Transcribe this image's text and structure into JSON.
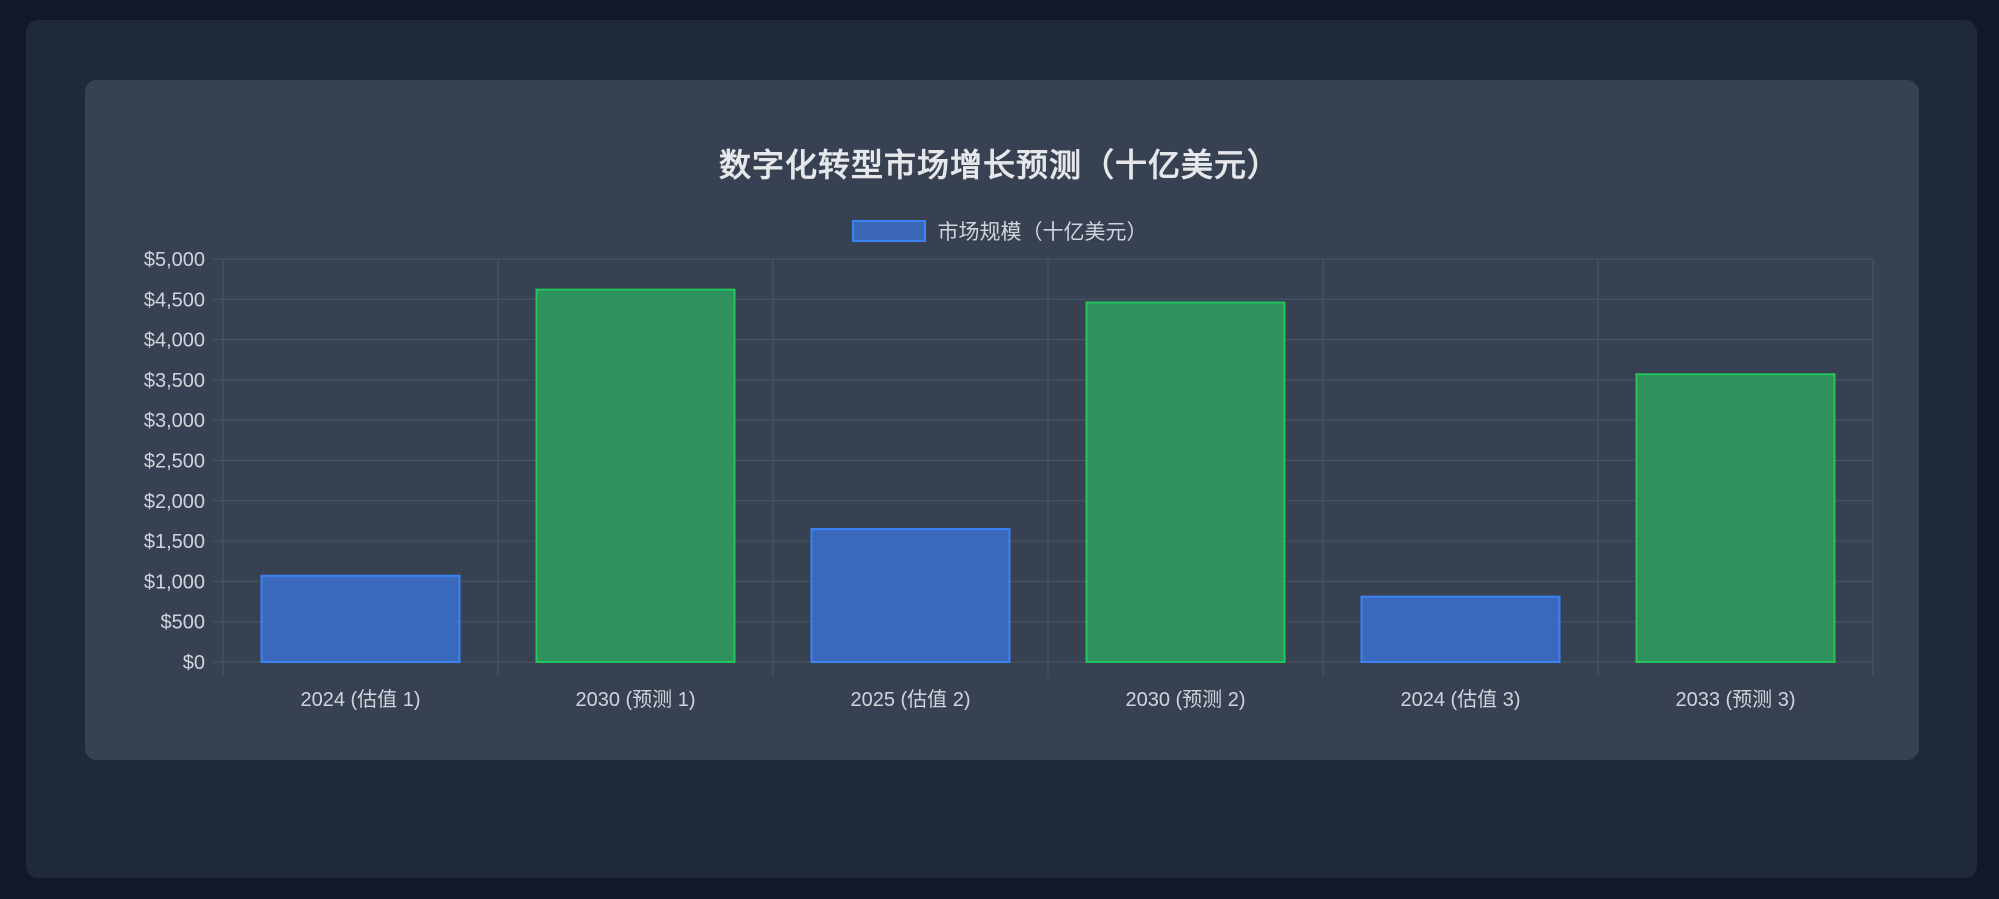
{
  "chart_data": {
    "type": "bar",
    "title": "数字化转型市场增长预测（十亿美元）",
    "legend": {
      "label": "市场规模（十亿美元）",
      "placement": "top-center"
    },
    "categories": [
      "2024 (估值 1)",
      "2030 (预测 1)",
      "2025 (估值 2)",
      "2030 (预测 2)",
      "2024 (估值 3)",
      "2033 (预测 3)"
    ],
    "values": [
      1070,
      4620,
      1650,
      4460,
      810,
      3570
    ],
    "bar_colors": [
      "#3b6ec8",
      "#2f9a5e",
      "#3b6ec8",
      "#2f9a5e",
      "#3b6ec8",
      "#2f9a5e"
    ],
    "bar_borders": [
      "#3b82f6",
      "#22c55e",
      "#3b82f6",
      "#22c55e",
      "#3b82f6",
      "#22c55e"
    ],
    "ylim": [
      0,
      5000
    ],
    "yticks": [
      0,
      500,
      1000,
      1500,
      2000,
      2500,
      3000,
      3500,
      4000,
      4500,
      5000
    ],
    "ytick_labels": [
      "$0",
      "$500",
      "$1,000",
      "$1,500",
      "$2,000",
      "$2,500",
      "$3,000",
      "$3,500",
      "$4,000",
      "$4,500",
      "$5,000"
    ],
    "grid": true,
    "xlabel": "",
    "ylabel": ""
  },
  "colors": {
    "background": "#111827",
    "panel": "#1f2937",
    "card": "#374151",
    "grid": "#4b5563",
    "text": "#d1d5db"
  }
}
